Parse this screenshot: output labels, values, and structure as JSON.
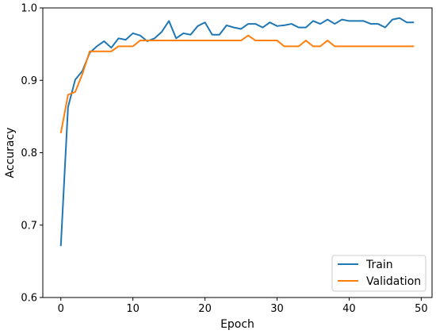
{
  "chart_data": {
    "type": "line",
    "title": "",
    "xlabel": "Epoch",
    "ylabel": "Accuracy",
    "xlim": [
      -2.5,
      51.5
    ],
    "ylim": [
      0.6,
      1.0
    ],
    "xticks": [
      0,
      10,
      20,
      30,
      40,
      50
    ],
    "yticks": [
      0.6,
      0.7,
      0.8,
      0.9,
      1.0
    ],
    "ytick_labels": [
      "0.6",
      "0.7",
      "0.8",
      "0.9",
      "1.0"
    ],
    "grid": false,
    "legend": "lower-right",
    "x": [
      0,
      1,
      2,
      3,
      4,
      5,
      6,
      7,
      8,
      9,
      10,
      11,
      12,
      13,
      14,
      15,
      16,
      17,
      18,
      19,
      20,
      21,
      22,
      23,
      24,
      25,
      26,
      27,
      28,
      29,
      30,
      31,
      32,
      33,
      34,
      35,
      36,
      37,
      38,
      39,
      40,
      41,
      42,
      43,
      44,
      45,
      46,
      47,
      48,
      49
    ],
    "series": [
      {
        "name": "Train",
        "color": "#1f77b4",
        "values": [
          0.671,
          0.863,
          0.901,
          0.913,
          0.938,
          0.947,
          0.954,
          0.945,
          0.958,
          0.956,
          0.965,
          0.962,
          0.954,
          0.958,
          0.967,
          0.982,
          0.958,
          0.965,
          0.963,
          0.975,
          0.98,
          0.963,
          0.963,
          0.976,
          0.973,
          0.971,
          0.978,
          0.978,
          0.973,
          0.98,
          0.975,
          0.976,
          0.978,
          0.973,
          0.973,
          0.982,
          0.978,
          0.984,
          0.978,
          0.984,
          0.982,
          0.982,
          0.982,
          0.978,
          0.978,
          0.973,
          0.984,
          0.986,
          0.98,
          0.98
        ]
      },
      {
        "name": "Validation",
        "color": "#ff7f0e",
        "values": [
          0.827,
          0.88,
          0.884,
          0.909,
          0.94,
          0.94,
          0.94,
          0.94,
          0.947,
          0.947,
          0.947,
          0.955,
          0.955,
          0.955,
          0.955,
          0.955,
          0.955,
          0.955,
          0.955,
          0.955,
          0.955,
          0.955,
          0.955,
          0.955,
          0.955,
          0.955,
          0.962,
          0.955,
          0.955,
          0.955,
          0.955,
          0.947,
          0.947,
          0.947,
          0.955,
          0.947,
          0.947,
          0.955,
          0.947,
          0.947,
          0.947,
          0.947,
          0.947,
          0.947,
          0.947,
          0.947,
          0.947,
          0.947,
          0.947,
          0.947
        ]
      }
    ]
  }
}
